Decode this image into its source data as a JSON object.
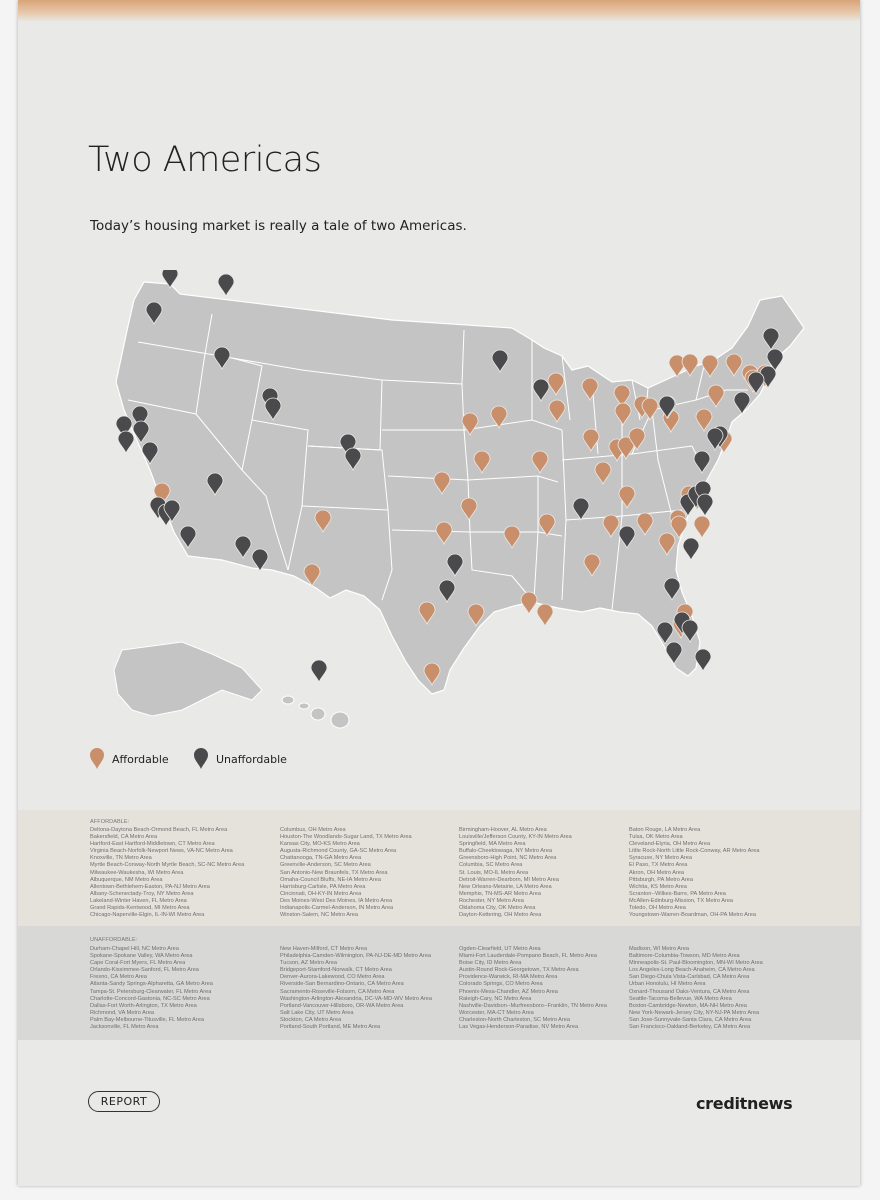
{
  "title": "Two Americas",
  "subtitle": "Today’s housing market is really a tale of two Americas.",
  "colors": {
    "affordable": "#c98e6a",
    "unaffordable": "#4a4a4c",
    "map_fill": "#c4c4c4",
    "map_stroke": "#ffffff"
  },
  "legend": {
    "affordable_label": "Affordable",
    "unaffordable_label": "Unaffordable",
    "affordable_icon": "map-pin-icon",
    "unaffordable_icon": "map-pin-icon"
  },
  "affordable_section": {
    "label": "AFFORDABLE:",
    "columns": [
      [
        "Deltona-Daytona Beach-Ormond Beach, FL Metro Area",
        "Bakersfield, CA Metro Area",
        "Hartford-East Hartford-Middletown, CT Metro Area",
        "Virginia Beach-Norfolk-Newport News, VA-NC Metro Area",
        "Knoxville, TN Metro Area",
        "Myrtle Beach-Conway-North Myrtle Beach, SC-NC Metro Area",
        "Milwaukee-Waukesha, WI Metro Area",
        "Albuquerque, NM Metro Area",
        "Allentown-Bethlehem-Easton, PA-NJ Metro Area",
        "Albany-Schenectady-Troy, NY Metro Area",
        "Lakeland-Winter Haven, FL Metro Area",
        "Grand Rapids-Kentwood, MI Metro Area",
        "Chicago-Naperville-Elgin, IL-IN-WI Metro Area"
      ],
      [
        "Columbus, OH Metro Area",
        "Houston-The Woodlands-Sugar Land, TX Metro Area",
        "Kansas City, MO-KS Metro Area",
        "Augusta-Richmond County, GA-SC Metro Area",
        "Chattanooga, TN-GA Metro Area",
        "Greenville-Anderson, SC Metro Area",
        "San Antonio-New Braunfels, TX Metro Area",
        "Omaha-Council Bluffs, NE-IA Metro Area",
        "Harrisburg-Carlisle, PA Metro Area",
        "Cincinnati, OH-KY-IN Metro Area",
        "Des Moines-West Des Moines, IA Metro Area",
        "Indianapolis-Carmel-Anderson, IN Metro Area",
        "Winston-Salem, NC Metro Area"
      ],
      [
        "Birmingham-Hoover, AL Metro Area",
        "Louisville/Jefferson County, KY-IN Metro Area",
        "Springfield, MA Metro Area",
        "Buffalo-Cheektowaga, NY Metro Area",
        "Greensboro-High Point, NC Metro Area",
        "Columbia, SC Metro Area",
        "St. Louis, MO-IL Metro Area",
        "Detroit-Warren-Dearborn, MI Metro Area",
        "New Orleans-Metairie, LA Metro Area",
        "Memphis, TN-MS-AR Metro Area",
        "Rochester, NY Metro Area",
        "Oklahoma City, OK Metro Area",
        "Dayton-Kettering, OH Metro Area"
      ],
      [
        "Baton Rouge, LA Metro Area",
        "Tulsa, OK Metro Area",
        "Cleveland-Elyria, OH Metro Area",
        "Little Rock-North Little Rock-Conway, AR Metro Area",
        "Syracuse, NY Metro Area",
        "El Paso, TX Metro Area",
        "Akron, OH Metro Area",
        "Pittsburgh, PA Metro Area",
        "Wichita, KS Metro Area",
        "Scranton--Wilkes-Barre, PA Metro Area",
        "McAllen-Edinburg-Mission, TX Metro Area",
        "Toledo, OH Metro Area",
        "Youngstown-Warren-Boardman, OH-PA Metro Area"
      ]
    ]
  },
  "unaffordable_section": {
    "label": "UNAFFORDABLE:",
    "columns": [
      [
        "Durham-Chapel Hill, NC Metro Area",
        "Spokane-Spokane Valley, WA Metro Area",
        "Cape Coral-Fort Myers, FL Metro Area",
        "Orlando-Kissimmee-Sanford, FL Metro Area",
        "Fresno, CA Metro Area",
        "Atlanta-Sandy Springs-Alpharetta, GA Metro Area",
        "Tampa-St. Petersburg-Clearwater, FL Metro Area",
        "Charlotte-Concord-Gastonia, NC-SC Metro Area",
        "Dallas-Fort Worth-Arlington, TX Metro Area",
        "Richmond, VA Metro Area",
        "Palm Bay-Melbourne-Titusville, FL Metro Area",
        "Jacksonville, FL Metro Area"
      ],
      [
        "New Haven-Milford, CT Metro Area",
        "Philadelphia-Camden-Wilmington, PA-NJ-DE-MD Metro Area",
        "Tucson, AZ Metro Area",
        "Bridgeport-Stamford-Norwalk, CT Metro Area",
        "Denver-Aurora-Lakewood, CO Metro Area",
        "Riverside-San Bernardino-Ontario, CA Metro Area",
        "Sacramento-Roseville-Folsom, CA Metro Area",
        "Washington-Arlington-Alexandria, DC-VA-MD-WV Metro Area",
        "Portland-Vancouver-Hillsboro, OR-WA Metro Area",
        "Salt Lake City, UT Metro Area",
        "Stockton, CA Metro Area",
        "Portland-South Portland, ME Metro Area"
      ],
      [
        "Ogden-Clearfield, UT Metro Area",
        "Miami-Fort Lauderdale-Pompano Beach, FL Metro Area",
        "Boise City, ID Metro Area",
        "Austin-Round Rock-Georgetown, TX Metro Area",
        "Providence-Warwick, RI-MA Metro Area",
        "Colorado Springs, CO Metro Area",
        "Phoenix-Mesa-Chandler, AZ Metro Area",
        "Raleigh-Cary, NC Metro Area",
        "Nashville-Davidson--Murfreesboro--Franklin, TN Metro Area",
        "Worcester, MA-CT Metro Area",
        "Charleston-North Charleston, SC Metro Area",
        "Las Vegas-Henderson-Paradise, NV Metro Area"
      ],
      [
        "Madison, WI Metro Area",
        "Baltimore-Columbia-Towson, MD Metro Area",
        "Minneapolis-St. Paul-Bloomington, MN-WI Metro Area",
        "Los Angeles-Long Beach-Anaheim, CA Metro Area",
        "San Diego-Chula Vista-Carlsbad, CA Metro Area",
        "Urban Honolulu, HI Metro Area",
        "Oxnard-Thousand Oaks-Ventura, CA Metro Area",
        "Seattle-Tacoma-Bellevue, WA Metro Area",
        "Boston-Cambridge-Newton, MA-NH Metro Area",
        "New York-Newark-Jersey City, NY-NJ-PA Metro Area",
        "San Jose-Sunnyvale-Santa Clara, CA Metro Area",
        "San Francisco-Oakland-Berkeley, CA Metro Area"
      ]
    ]
  },
  "footer": {
    "report_label": "REPORT",
    "brand": "creditnews"
  }
}
